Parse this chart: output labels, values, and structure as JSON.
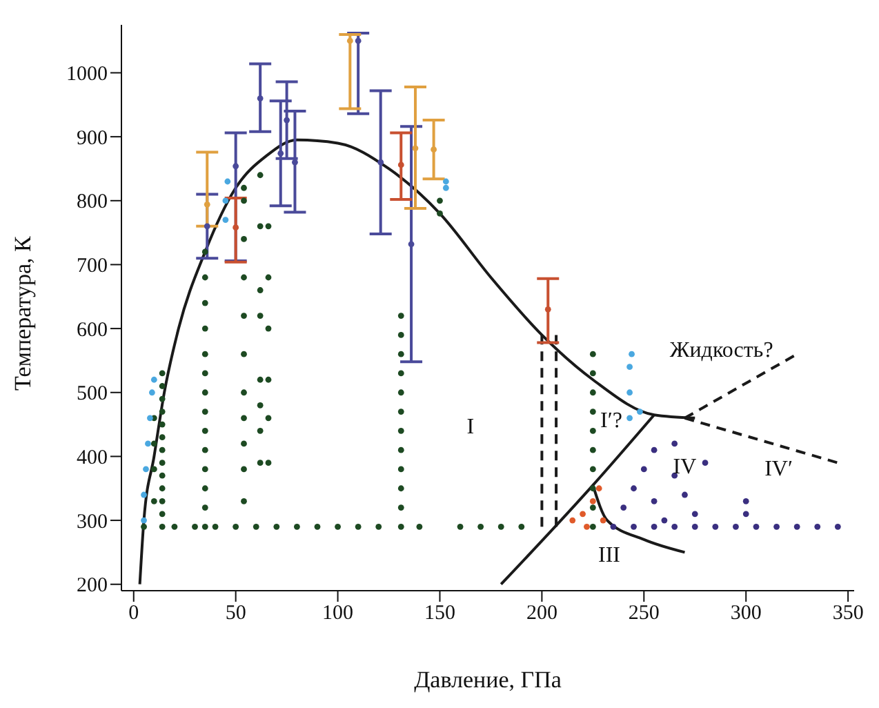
{
  "chart_data": {
    "type": "scatter",
    "xlabel": "Давление, ГПа",
    "ylabel": "Температура, К",
    "xlim": [
      -6,
      353
    ],
    "ylim": [
      190,
      1075
    ],
    "xticks": [
      0,
      50,
      100,
      150,
      200,
      250,
      300,
      350
    ],
    "yticks": [
      200,
      300,
      400,
      500,
      600,
      700,
      800,
      900,
      1000
    ],
    "grid": false,
    "series": [
      {
        "type": "line",
        "color": "#1a1a1a",
        "line_style": "solid",
        "marker": "none",
        "x": [
          3,
          5,
          10,
          15,
          22,
          35,
          50,
          65,
          80,
          100,
          125,
          150,
          175,
          200,
          225,
          255,
          275
        ],
        "values": [
          200,
          300,
          400,
          500,
          600,
          720,
          820,
          870,
          895,
          890,
          850,
          780,
          680,
          590,
          520,
          465,
          460
        ]
      },
      {
        "type": "line",
        "color": "#1a1a1a",
        "line_style": "solid",
        "marker": "none",
        "x": [
          180,
          225,
          255
        ],
        "values": [
          200,
          355,
          465
        ]
      },
      {
        "type": "line",
        "color": "#1a1a1a",
        "line_style": "solid",
        "marker": "none",
        "x": [
          225,
          232,
          250,
          270
        ],
        "values": [
          355,
          300,
          270,
          250
        ]
      },
      {
        "type": "line",
        "color": "#1a1a1a",
        "line_style": "dashed",
        "marker": "none",
        "x": [
          270,
          345
        ],
        "values": [
          460,
          390
        ]
      },
      {
        "type": "line",
        "color": "#1a1a1a",
        "line_style": "dashed",
        "marker": "none",
        "x": [
          270,
          325
        ],
        "values": [
          460,
          560
        ]
      },
      {
        "type": "line",
        "color": "#1a1a1a",
        "line_style": "dashed",
        "marker": "none",
        "x": [
          200,
          200
        ],
        "values": [
          290,
          590
        ]
      },
      {
        "type": "line",
        "color": "#1a1a1a",
        "line_style": "dashed",
        "marker": "none",
        "x": [
          207,
          207
        ],
        "values": [
          290,
          590
        ]
      },
      {
        "type": "scatter",
        "color": "#1d4a22",
        "marker": "circle",
        "x": [
          14,
          14,
          14,
          14,
          14,
          14,
          14,
          14,
          14,
          14,
          14,
          14,
          14,
          10,
          10,
          10,
          10,
          35,
          35,
          35,
          35,
          35,
          35,
          35,
          35,
          35,
          35,
          35,
          35,
          35,
          35,
          54,
          54,
          54,
          54,
          54,
          54,
          54,
          54,
          54,
          54,
          54,
          62,
          62,
          62,
          62,
          62,
          62,
          62,
          62,
          66,
          66,
          66,
          66,
          66,
          66,
          131,
          131,
          131,
          131,
          131,
          131,
          131,
          131,
          131,
          131,
          131,
          131,
          150,
          150,
          5,
          20,
          30,
          40,
          50,
          60,
          70,
          80,
          90,
          100,
          110,
          120,
          140,
          160,
          170,
          180,
          190,
          225,
          225,
          225,
          225,
          225,
          225,
          225,
          225,
          225,
          225
        ],
        "values": [
          290,
          310,
          330,
          350,
          370,
          390,
          410,
          430,
          450,
          470,
          490,
          510,
          530,
          330,
          380,
          420,
          460,
          290,
          320,
          350,
          380,
          410,
          440,
          470,
          500,
          530,
          560,
          600,
          640,
          680,
          720,
          330,
          380,
          420,
          460,
          500,
          560,
          620,
          680,
          740,
          800,
          820,
          390,
          440,
          480,
          520,
          620,
          660,
          760,
          840,
          390,
          460,
          520,
          600,
          680,
          760,
          290,
          320,
          350,
          380,
          410,
          440,
          470,
          500,
          530,
          560,
          590,
          620,
          780,
          800,
          290,
          290,
          290,
          290,
          290,
          290,
          290,
          290,
          290,
          290,
          290,
          290,
          290,
          290,
          290,
          290,
          290,
          290,
          320,
          350,
          380,
          410,
          440,
          470,
          500,
          530,
          560
        ]
      },
      {
        "type": "scatter",
        "color": "#3a2f80",
        "marker": "circle",
        "x": [
          235,
          245,
          255,
          265,
          275,
          285,
          295,
          305,
          315,
          325,
          335,
          345,
          240,
          245,
          250,
          255,
          260,
          265,
          270,
          275,
          280,
          265,
          255,
          300,
          300
        ],
        "values": [
          290,
          290,
          290,
          290,
          290,
          290,
          290,
          290,
          290,
          290,
          290,
          290,
          320,
          350,
          380,
          330,
          300,
          370,
          340,
          310,
          390,
          420,
          410,
          330,
          310
        ]
      },
      {
        "type": "scatter",
        "color": "#e05a2a",
        "marker": "circle",
        "x": [
          215,
          220,
          225,
          228,
          222,
          230
        ],
        "values": [
          300,
          310,
          330,
          350,
          290,
          300
        ]
      },
      {
        "type": "scatter",
        "color": "#4aa8e0",
        "marker": "circle",
        "x": [
          5,
          5,
          6,
          7,
          8,
          9,
          10,
          45,
          45,
          46,
          153,
          153,
          243,
          243,
          243,
          244,
          248
        ],
        "values": [
          300,
          340,
          380,
          420,
          460,
          500,
          520,
          770,
          800,
          830,
          820,
          830,
          460,
          500,
          540,
          560,
          470
        ]
      },
      {
        "type": "scatter",
        "color": "#4a4a9a",
        "marker": "circle",
        "x": [
          36,
          50,
          62,
          72,
          75,
          79,
          110,
          121,
          136
        ],
        "values": [
          760,
          854,
          960,
          874,
          926,
          860,
          1050,
          860,
          732
        ],
        "errors": [
          [
            710,
            810
          ],
          [
            706,
            906
          ],
          [
            908,
            1014
          ],
          [
            792,
            956
          ],
          [
            866,
            986
          ],
          [
            782,
            940
          ],
          [
            936,
            1062
          ],
          [
            748,
            972
          ],
          [
            548,
            916
          ]
        ]
      },
      {
        "type": "scatter",
        "color": "#e0a040",
        "marker": "circle",
        "x": [
          36,
          106,
          138,
          147
        ],
        "values": [
          794,
          1050,
          882,
          880
        ],
        "errors": [
          [
            760,
            876
          ],
          [
            944,
            1060
          ],
          [
            788,
            978
          ],
          [
            834,
            926
          ]
        ]
      },
      {
        "type": "scatter",
        "color": "#c85030",
        "marker": "circle",
        "x": [
          50,
          131,
          203
        ],
        "values": [
          758,
          856,
          630
        ],
        "errors": [
          [
            704,
            804
          ],
          [
            802,
            906
          ],
          [
            578,
            678
          ]
        ]
      }
    ],
    "annotations": [
      "I",
      "I′?",
      "IV",
      "IV′",
      "III",
      "Жидкость?"
    ]
  }
}
